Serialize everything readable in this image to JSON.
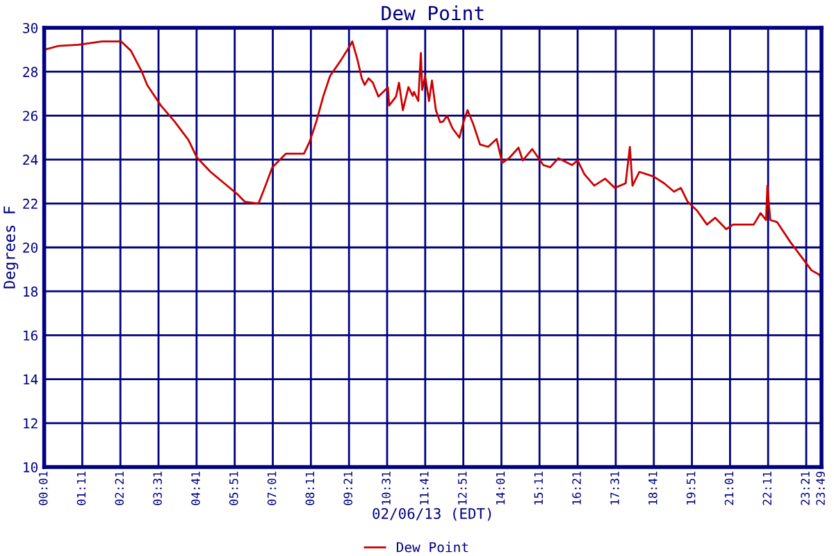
{
  "chart_data": {
    "type": "line",
    "title": "Dew Point",
    "xlabel": "02/06/13 (EDT)",
    "ylabel": "Degrees F",
    "x": [
      0.017,
      0.44,
      1.07,
      1.78,
      2.37,
      2.67,
      3.0,
      3.17,
      3.59,
      4.01,
      4.43,
      4.69,
      5.11,
      5.53,
      5.95,
      6.16,
      6.58,
      6.79,
      7.0,
      7.42,
      7.97,
      8.14,
      8.35,
      8.56,
      8.77,
      9.11,
      9.4,
      9.45,
      9.61,
      9.74,
      9.83,
      9.95,
      10.08,
      10.25,
      10.54,
      10.58,
      10.79,
      10.88,
      11.0,
      11.17,
      11.3,
      11.34,
      11.47,
      11.55,
      11.59,
      11.68,
      11.8,
      11.89,
      12.01,
      12.14,
      12.23,
      12.35,
      12.52,
      12.73,
      12.86,
      12.98,
      13.15,
      13.36,
      13.61,
      13.87,
      14.04,
      14.25,
      14.54,
      14.67,
      14.96,
      15.3,
      15.51,
      15.76,
      16.18,
      16.35,
      16.56,
      16.86,
      17.19,
      17.49,
      17.82,
      17.95,
      18.03,
      18.24,
      18.67,
      19.0,
      19.3,
      19.51,
      19.72,
      20.01,
      20.31,
      20.56,
      20.9,
      21.11,
      21.4,
      21.74,
      21.95,
      22.12,
      22.16,
      22.25,
      22.46,
      22.88,
      23.3,
      23.51,
      23.76,
      23.817
    ],
    "series": [
      {
        "name": "Dew Point",
        "color": "#cc0000",
        "values": [
          29.0,
          29.17,
          29.23,
          29.38,
          29.38,
          28.96,
          28.02,
          27.4,
          26.46,
          25.73,
          24.9,
          24.1,
          23.44,
          22.92,
          22.4,
          22.08,
          22.0,
          22.8,
          23.64,
          24.27,
          24.27,
          24.8,
          25.73,
          26.87,
          27.81,
          28.54,
          29.23,
          29.38,
          28.54,
          27.7,
          27.4,
          27.7,
          27.5,
          26.87,
          27.29,
          26.46,
          26.87,
          27.5,
          26.25,
          27.3,
          26.9,
          27.08,
          26.67,
          28.85,
          27.17,
          27.8,
          26.67,
          27.6,
          26.25,
          25.7,
          25.73,
          26.0,
          25.42,
          25.0,
          25.73,
          26.25,
          25.63,
          24.69,
          24.58,
          24.94,
          23.85,
          24.06,
          24.54,
          23.96,
          24.48,
          23.75,
          23.65,
          24.06,
          23.75,
          23.96,
          23.33,
          22.81,
          23.13,
          22.71,
          22.92,
          24.58,
          22.81,
          23.44,
          23.23,
          22.92,
          22.54,
          22.71,
          22.08,
          21.67,
          21.04,
          21.35,
          20.83,
          21.04,
          21.04,
          21.04,
          21.56,
          21.25,
          22.81,
          21.25,
          21.15,
          20.21,
          19.38,
          18.96,
          18.75,
          18.5
        ]
      }
    ],
    "xlim": [
      0.017,
      23.817
    ],
    "xticks": [
      {
        "value": 0.017,
        "label": "00:01"
      },
      {
        "value": 1.183,
        "label": "01:11"
      },
      {
        "value": 2.35,
        "label": "02:21"
      },
      {
        "value": 3.517,
        "label": "03:31"
      },
      {
        "value": 4.683,
        "label": "04:41"
      },
      {
        "value": 5.85,
        "label": "05:51"
      },
      {
        "value": 7.017,
        "label": "07:01"
      },
      {
        "value": 8.183,
        "label": "08:11"
      },
      {
        "value": 9.35,
        "label": "09:21"
      },
      {
        "value": 10.517,
        "label": "10:31"
      },
      {
        "value": 11.683,
        "label": "11:41"
      },
      {
        "value": 12.85,
        "label": "12:51"
      },
      {
        "value": 14.017,
        "label": "14:01"
      },
      {
        "value": 15.183,
        "label": "15:11"
      },
      {
        "value": 16.35,
        "label": "16:21"
      },
      {
        "value": 17.517,
        "label": "17:31"
      },
      {
        "value": 18.683,
        "label": "18:41"
      },
      {
        "value": 19.85,
        "label": "19:51"
      },
      {
        "value": 21.017,
        "label": "21:01"
      },
      {
        "value": 22.183,
        "label": "22:11"
      },
      {
        "value": 23.35,
        "label": "23:21"
      },
      {
        "value": 23.817,
        "label": "23:49"
      }
    ],
    "ylim": [
      10,
      30
    ],
    "yticks": [
      10,
      12,
      14,
      16,
      18,
      20,
      22,
      24,
      26,
      28,
      30
    ],
    "grid": true,
    "legend": "bottom",
    "marker": "none",
    "line_style": "solid"
  }
}
